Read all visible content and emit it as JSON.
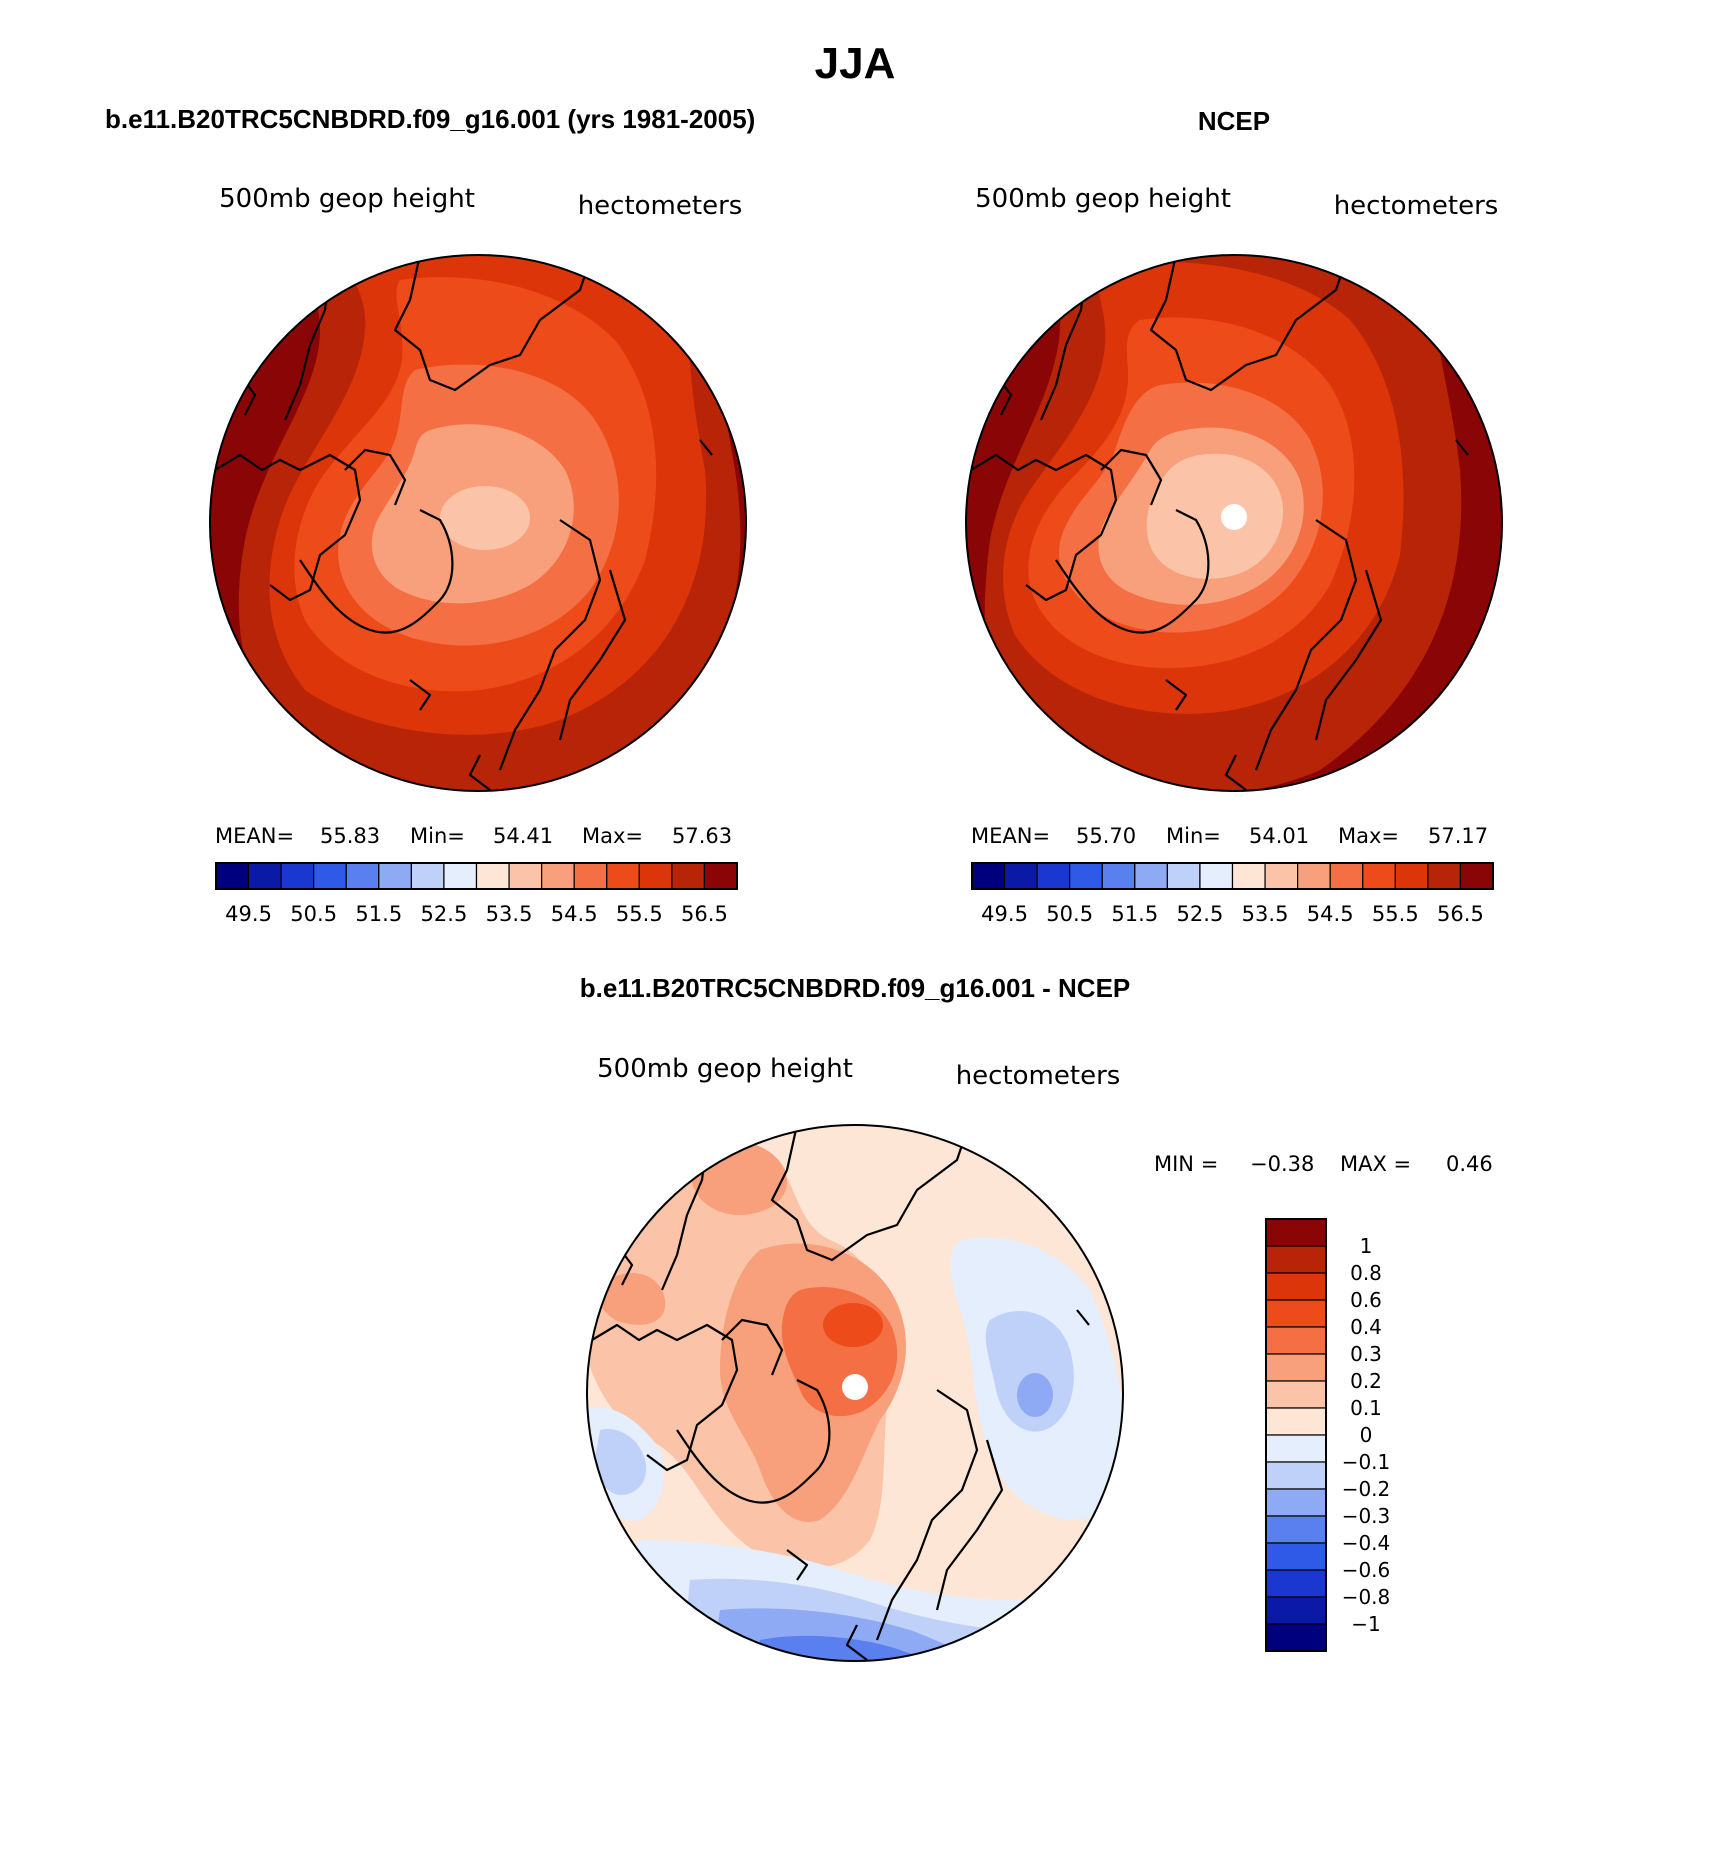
{
  "figure": {
    "title": "JJA",
    "panel_model_title": "b.e11.B20TRC5CNBDRD.f09_g16.001 (yrs 1981-2005)",
    "panel_obs_title": "NCEP",
    "panel_diff_title": "b.e11.B20TRC5CNBDRD.f09_g16.001 - NCEP"
  },
  "panels": {
    "model": {
      "left_label": "500mb geop height",
      "right_label": "hectometers",
      "stats": {
        "mean_label": "MEAN=",
        "mean_value": "55.83",
        "min_label": "Min=",
        "min_value": "54.41",
        "max_label": "Max=",
        "max_value": "57.63"
      },
      "colorbar_ticks": [
        "49.5",
        "50.5",
        "51.5",
        "52.5",
        "53.5",
        "54.5",
        "55.5",
        "56.5"
      ]
    },
    "obs": {
      "left_label": "500mb geop height",
      "right_label": "hectometers",
      "stats": {
        "mean_label": "MEAN=",
        "mean_value": "55.70",
        "min_label": "Min=",
        "min_value": "54.01",
        "max_label": "Max=",
        "max_value": "57.17"
      },
      "colorbar_ticks": [
        "49.5",
        "50.5",
        "51.5",
        "52.5",
        "53.5",
        "54.5",
        "55.5",
        "56.5"
      ]
    },
    "diff": {
      "left_label": "500mb geop height",
      "right_label": "hectometers",
      "stats": {
        "min_label": "MIN =",
        "min_value": "−0.38",
        "max_label": "MAX =",
        "max_value": "0.46"
      },
      "colorbar_ticks": [
        "1",
        "0.8",
        "0.6",
        "0.4",
        "0.3",
        "0.2",
        "0.1",
        "0",
        "−0.1",
        "−0.2",
        "−0.3",
        "−0.4",
        "−0.6",
        "−0.8",
        "−1"
      ]
    }
  },
  "colors": {
    "abs_scale": [
      "#00007f",
      "#0a1aa6",
      "#1a38d0",
      "#2f5ae8",
      "#5a80ef",
      "#8eaaf4",
      "#bfd1f8",
      "#e4eefc",
      "#fde6d6",
      "#fbc4a8",
      "#f8a07b",
      "#f46f43",
      "#ee4b1b",
      "#dc3509",
      "#b82408",
      "#8a0606"
    ],
    "diff_scale": [
      "#8a0606",
      "#b82408",
      "#dc3509",
      "#ee4b1b",
      "#f46f43",
      "#f8a07b",
      "#fbc4a8",
      "#fde6d6",
      "#e4eefc",
      "#bfd1f8",
      "#8eaaf4",
      "#5a80ef",
      "#2f5ae8",
      "#1a38d0",
      "#0a1aa6",
      "#00007f"
    ],
    "coast": "#000000"
  }
}
